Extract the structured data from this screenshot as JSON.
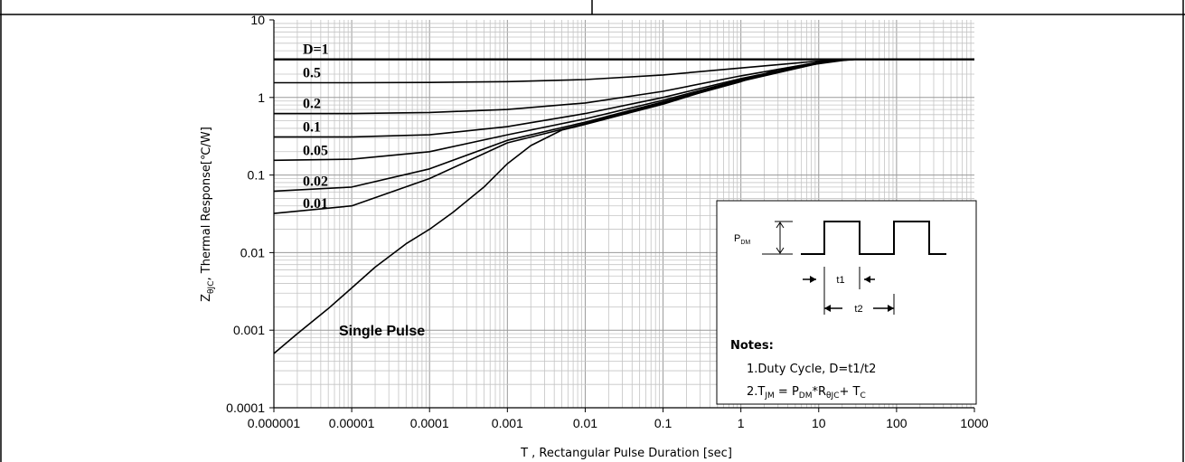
{
  "chart_data": {
    "type": "line",
    "title": "",
    "xlabel": "T , Rectangular Pulse Duration [sec]",
    "ylabel": "ZθJC, Thermal Response[℃/W]",
    "ylabel_main": "Z",
    "ylabel_sub": "θJC",
    "ylabel_rest": ", Thermal Response[℃/W]",
    "x_scale": "log",
    "y_scale": "log",
    "xlim": [
      1e-06,
      1000
    ],
    "ylim": [
      0.0001,
      10
    ],
    "grid": true,
    "x_tick_labels": [
      "0.000001",
      "0.00001",
      "0.0001",
      "0.001",
      "0.01",
      "0.1",
      "1",
      "10",
      "100",
      "1000"
    ],
    "y_tick_labels": [
      "10",
      "1",
      "0.1",
      "0.01",
      "0.001",
      "0.0001"
    ],
    "x_ticks": [
      1e-06,
      1e-05,
      0.0001,
      0.001,
      0.01,
      0.1,
      1,
      10,
      100,
      1000
    ],
    "y_ticks": [
      10,
      1,
      0.1,
      0.01,
      0.001,
      0.0001
    ],
    "series": [
      {
        "name": "D=1",
        "x": [
          1e-06,
          1e-05,
          0.0001,
          0.001,
          0.01,
          0.1,
          1,
          10,
          20,
          30,
          100,
          1000
        ],
        "y": [
          3.1,
          3.1,
          3.1,
          3.1,
          3.1,
          3.1,
          3.1,
          3.1,
          3.1,
          3.1,
          3.1,
          3.1
        ]
      },
      {
        "name": "0.5",
        "x": [
          1e-06,
          1e-05,
          0.0001,
          0.001,
          0.01,
          0.1,
          1,
          10,
          20,
          30,
          100,
          1000
        ],
        "y": [
          1.55,
          1.55,
          1.56,
          1.6,
          1.7,
          1.95,
          2.4,
          2.95,
          3.07,
          3.1,
          3.1,
          3.1
        ]
      },
      {
        "name": "0.2",
        "x": [
          1e-06,
          1e-05,
          0.0001,
          0.001,
          0.01,
          0.1,
          1,
          10,
          20,
          30,
          100,
          1000
        ],
        "y": [
          0.62,
          0.62,
          0.64,
          0.7,
          0.85,
          1.2,
          1.9,
          2.85,
          3.05,
          3.1,
          3.1,
          3.1
        ]
      },
      {
        "name": "0.1",
        "x": [
          1e-06,
          1e-05,
          0.0001,
          0.001,
          0.01,
          0.1,
          1,
          10,
          20,
          30,
          100,
          1000
        ],
        "y": [
          0.31,
          0.31,
          0.33,
          0.42,
          0.62,
          1.0,
          1.75,
          2.8,
          3.04,
          3.1,
          3.1,
          3.1
        ]
      },
      {
        "name": "0.05",
        "x": [
          1e-06,
          1e-05,
          0.0001,
          0.001,
          0.01,
          0.1,
          1,
          10,
          20,
          30,
          100,
          1000
        ],
        "y": [
          0.155,
          0.16,
          0.2,
          0.33,
          0.53,
          0.92,
          1.7,
          2.78,
          3.03,
          3.1,
          3.1,
          3.1
        ]
      },
      {
        "name": "0.02",
        "x": [
          1e-06,
          1e-05,
          0.0001,
          0.001,
          0.01,
          0.1,
          1,
          10,
          20,
          30,
          100,
          1000
        ],
        "y": [
          0.062,
          0.07,
          0.12,
          0.28,
          0.48,
          0.88,
          1.65,
          2.76,
          3.02,
          3.1,
          3.1,
          3.1
        ]
      },
      {
        "name": "0.01",
        "x": [
          1e-06,
          1e-05,
          0.0001,
          0.001,
          0.01,
          0.1,
          1,
          10,
          20,
          30,
          100,
          1000
        ],
        "y": [
          0.032,
          0.04,
          0.09,
          0.26,
          0.46,
          0.85,
          1.62,
          2.75,
          3.02,
          3.1,
          3.1,
          3.1
        ]
      },
      {
        "name": "Single Pulse",
        "x": [
          1e-06,
          2e-06,
          5e-06,
          1e-05,
          2e-05,
          5e-05,
          0.0001,
          0.0002,
          0.0005,
          0.001,
          0.002,
          0.005,
          0.01,
          0.03,
          0.1,
          0.3,
          1,
          3,
          10,
          20,
          30,
          100,
          1000
        ],
        "y": [
          0.0005,
          0.0009,
          0.0019,
          0.0035,
          0.0065,
          0.013,
          0.02,
          0.033,
          0.07,
          0.14,
          0.24,
          0.38,
          0.45,
          0.6,
          0.82,
          1.15,
          1.6,
          2.3,
          2.72,
          3.0,
          3.1,
          3.1,
          3.1
        ]
      }
    ],
    "curve_labels": [
      "D=1",
      "0.5",
      "0.2",
      "0.1",
      "0.05",
      "0.02",
      "0.01"
    ],
    "single_pulse_label": "Single Pulse",
    "inset": {
      "pdm_label": "PDM",
      "t1_label": "t1",
      "t2_label": "t2",
      "notes_title": "Notes:",
      "note1": "1.Duty  Cycle, D=t1/t2",
      "note2": "2.TJM = PDM*RθJC+ TC"
    }
  }
}
